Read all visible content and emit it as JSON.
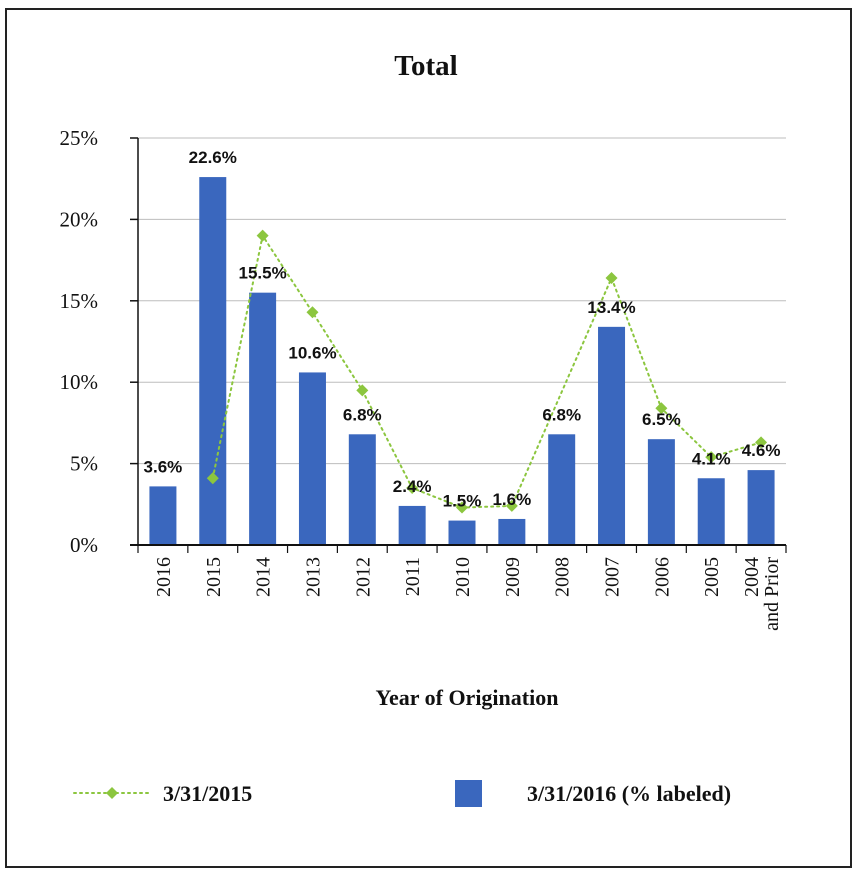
{
  "chart_data": {
    "type": "bar",
    "title": "Total",
    "xlabel": "Year of Origination",
    "ylabel": "",
    "ylim": [
      0,
      25
    ],
    "yticks": [
      "0%",
      "5%",
      "10%",
      "15%",
      "20%",
      "25%"
    ],
    "grid": true,
    "legend_position": "bottom",
    "categories": [
      "2016",
      "2015",
      "2014",
      "2013",
      "2012",
      "2011",
      "2010",
      "2009",
      "2008",
      "2007",
      "2006",
      "2005",
      "2004 and Prior"
    ],
    "series": [
      {
        "name": "3/31/2016 (% labeled)",
        "type": "bar",
        "color": "#3a67be",
        "values": [
          3.6,
          22.6,
          15.5,
          10.6,
          6.8,
          2.4,
          1.5,
          1.6,
          6.8,
          13.4,
          6.5,
          4.1,
          4.6
        ],
        "labels": [
          "3.6%",
          "22.6%",
          "15.5%",
          "10.6%",
          "6.8%",
          "2.4%",
          "1.5%",
          "1.6%",
          "6.8%",
          "13.4%",
          "6.5%",
          "4.1%",
          "4.6%"
        ]
      },
      {
        "name": "3/31/2015",
        "type": "line",
        "style": "dotted",
        "marker": "diamond",
        "color": "#8cc63f",
        "values": [
          null,
          4.1,
          19.0,
          14.3,
          9.5,
          3.5,
          2.3,
          2.4,
          null,
          16.4,
          8.4,
          5.4,
          6.3
        ]
      }
    ]
  }
}
